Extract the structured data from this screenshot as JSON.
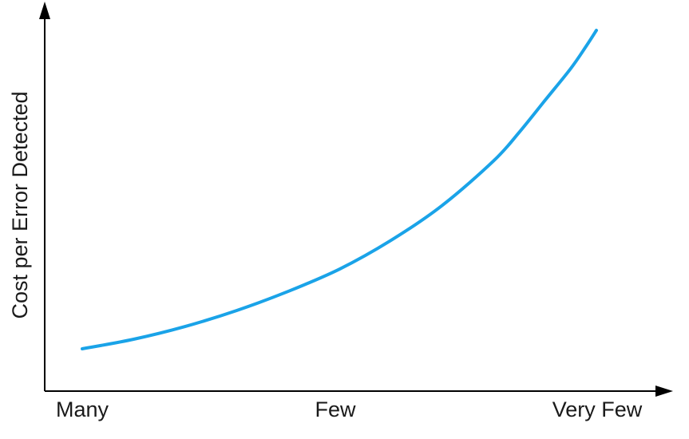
{
  "chart_data": {
    "type": "line",
    "title": "",
    "xlabel": "",
    "ylabel": "Cost per Error Detected",
    "categories": [
      "Many",
      "Few",
      "Very Few"
    ],
    "x_ticks": [
      "Many",
      "Few",
      "Very Few"
    ],
    "series": [
      {
        "color": "#1aa3e8",
        "x": [
          0,
          0.1,
          0.2,
          0.3,
          0.4,
          0.5,
          0.6,
          0.7,
          0.8,
          0.85,
          0.9,
          0.95,
          0.98,
          1.0
        ],
        "values": [
          0.0,
          0.03,
          0.07,
          0.12,
          0.18,
          0.25,
          0.34,
          0.45,
          0.59,
          0.68,
          0.78,
          0.88,
          0.95,
          1.0
        ]
      }
    ],
    "xlim": [
      0,
      1
    ],
    "ylim": [
      0,
      1
    ],
    "grid": false,
    "legend": "none",
    "axis_color": "#000000",
    "line_color": "#1aa3e8"
  }
}
